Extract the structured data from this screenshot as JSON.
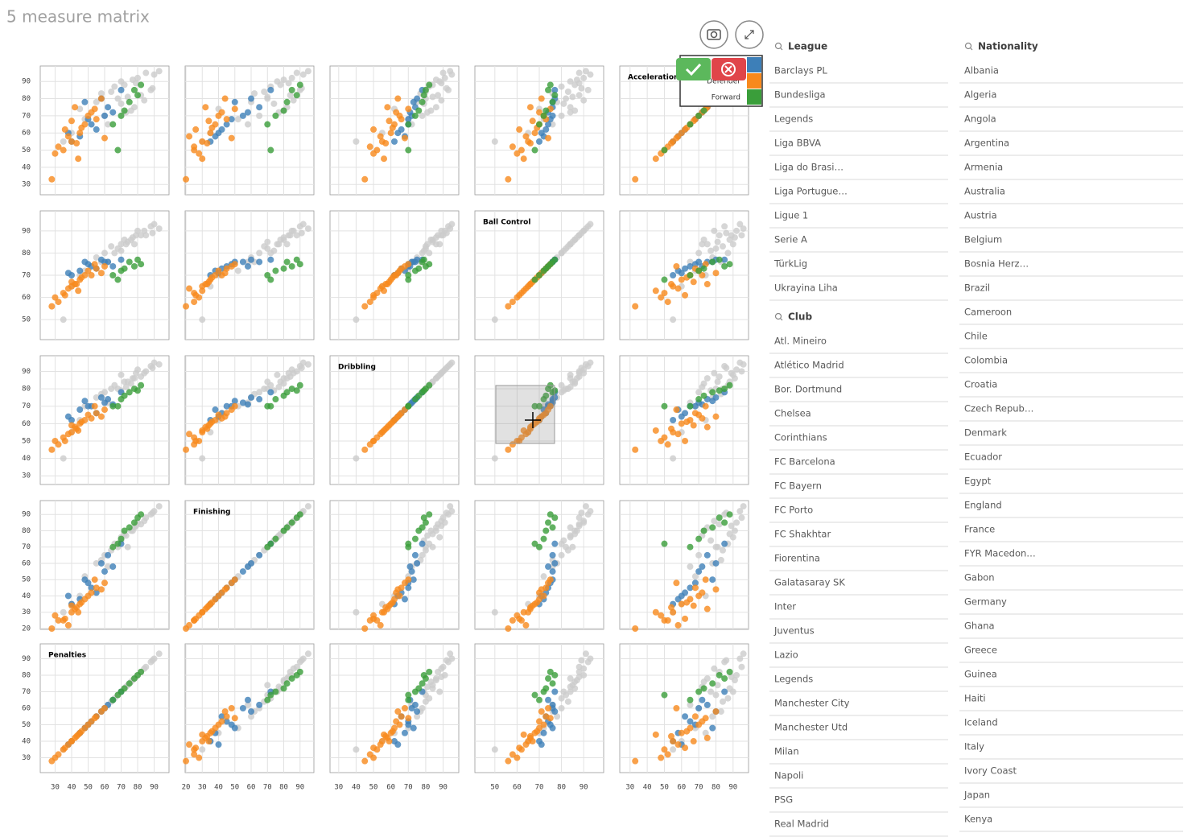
{
  "title": "5 measure matrix",
  "chart_data": {
    "type": "scatter_matrix",
    "measures": [
      {
        "name": "Acceleration",
        "lim": [
          24,
          99
        ],
        "ticks": [
          30,
          40,
          50,
          60,
          70,
          80,
          90
        ]
      },
      {
        "name": "Ball Control",
        "lim": [
          41,
          99
        ],
        "ticks": [
          50,
          60,
          70,
          80,
          90
        ]
      },
      {
        "name": "Dribbling",
        "lim": [
          25,
          99
        ],
        "ticks": [
          30,
          40,
          50,
          60,
          70,
          80,
          90
        ]
      },
      {
        "name": "Finishing",
        "lim": [
          19.5,
          98.5
        ],
        "ticks": [
          20,
          30,
          40,
          50,
          60,
          70,
          80,
          90
        ]
      },
      {
        "name": "Penalties",
        "lim": [
          21,
          99
        ],
        "ticks": [
          30,
          40,
          50,
          60,
          70,
          80,
          90
        ]
      }
    ],
    "grid": true,
    "background": {
      "color": "#cccccc",
      "points": [
        [
          88,
          86,
          84,
          78,
          72
        ],
        [
          92,
          90,
          91,
          85,
          80
        ],
        [
          80,
          82,
          80,
          70,
          68
        ],
        [
          75,
          84,
          86,
          82,
          78
        ],
        [
          95,
          88,
          90,
          88,
          85
        ],
        [
          70,
          80,
          78,
          65,
          60
        ],
        [
          85,
          92,
          93,
          90,
          88
        ],
        [
          78,
          78,
          75,
          60,
          55
        ],
        [
          90,
          84,
          88,
          76,
          70
        ],
        [
          65,
          76,
          72,
          58,
          62
        ],
        [
          82,
          88,
          87,
          84,
          82
        ],
        [
          73,
          86,
          83,
          80,
          76
        ],
        [
          87,
          80,
          82,
          72,
          66
        ],
        [
          94,
          93,
          95,
          92,
          90
        ],
        [
          68,
          72,
          70,
          52,
          48
        ],
        [
          84,
          83,
          80,
          68,
          64
        ],
        [
          79,
          90,
          89,
          86,
          84
        ],
        [
          91,
          87,
          86,
          80,
          77
        ],
        [
          60,
          65,
          55,
          35,
          40
        ],
        [
          74,
          70,
          62,
          40,
          45
        ],
        [
          86,
          89,
          92,
          91,
          89
        ],
        [
          77,
          81,
          79,
          74,
          70
        ],
        [
          83,
          76,
          77,
          62,
          58
        ],
        [
          96,
          91,
          94,
          95,
          93
        ],
        [
          72,
          84,
          81,
          77,
          73
        ],
        [
          55,
          50,
          40,
          30,
          35
        ],
        [
          89,
          88,
          89,
          83,
          79
        ],
        [
          81,
          85,
          84,
          70,
          74
        ]
      ]
    },
    "series": [
      {
        "name": null,
        "color": "#3d7fb8",
        "points": [
          [
            70,
            76,
            72,
            55,
            60
          ],
          [
            65,
            74,
            70,
            45,
            52
          ],
          [
            80,
            77,
            75,
            60,
            58
          ],
          [
            58,
            72,
            68,
            38,
            45
          ],
          [
            75,
            76,
            74,
            65,
            62
          ],
          [
            68,
            75,
            70,
            48,
            50
          ],
          [
            55,
            70,
            62,
            35,
            40
          ],
          [
            85,
            77,
            78,
            72,
            70
          ],
          [
            62,
            73,
            66,
            42,
            55
          ],
          [
            72,
            74,
            71,
            58,
            65
          ],
          [
            78,
            76,
            73,
            50,
            48
          ],
          [
            60,
            71,
            64,
            40,
            38
          ]
        ]
      },
      {
        "name": "Defender",
        "color": "#f8891d",
        "points": [
          [
            60,
            68,
            60,
            35,
            45
          ],
          [
            55,
            65,
            55,
            30,
            40
          ],
          [
            70,
            72,
            65,
            40,
            50
          ],
          [
            50,
            62,
            52,
            25,
            35
          ],
          [
            65,
            70,
            62,
            38,
            48
          ],
          [
            75,
            66,
            58,
            32,
            42
          ],
          [
            48,
            60,
            50,
            28,
            30
          ],
          [
            68,
            73,
            66,
            45,
            55
          ],
          [
            58,
            64,
            54,
            22,
            38
          ],
          [
            72,
            70,
            63,
            42,
            52
          ],
          [
            52,
            58,
            48,
            25,
            32
          ],
          [
            63,
            69,
            61,
            36,
            46
          ],
          [
            80,
            71,
            64,
            44,
            58
          ],
          [
            45,
            63,
            56,
            30,
            44
          ],
          [
            67,
            67,
            59,
            34,
            40
          ],
          [
            33,
            56,
            45,
            20,
            28
          ],
          [
            57,
            74,
            68,
            48,
            60
          ],
          [
            62,
            61,
            50,
            26,
            36
          ],
          [
            74,
            75,
            70,
            50,
            54
          ],
          [
            54,
            66,
            57,
            33,
            43
          ]
        ]
      },
      {
        "name": "Forward",
        "color": "#3a9e3a",
        "points": [
          [
            78,
            76,
            78,
            82,
            75
          ],
          [
            85,
            74,
            80,
            85,
            78
          ],
          [
            70,
            72,
            74,
            75,
            70
          ],
          [
            82,
            77,
            79,
            88,
            80
          ],
          [
            65,
            70,
            70,
            70,
            65
          ],
          [
            88,
            75,
            82,
            90,
            82
          ],
          [
            73,
            73,
            76,
            80,
            72
          ],
          [
            50,
            68,
            70,
            72,
            68
          ]
        ]
      }
    ]
  },
  "filters": [
    {
      "title": "League",
      "items": [
        "Barclays PL",
        "Bundesliga",
        "Legends",
        "Liga BBVA",
        "Liga do Brasi…",
        "Liga Portugue…",
        "Ligue 1",
        "Serie A",
        "TürkLig",
        "Ukrayina Liha"
      ]
    },
    {
      "title": "Club",
      "items": [
        "Atl. Mineiro",
        "Atlético Madrid",
        "Bor. Dortmund",
        "Chelsea",
        "Corinthians",
        "FC Barcelona",
        "FC Bayern",
        "FC Porto",
        "FC Shakhtar",
        "Fiorentina",
        "Galatasaray SK",
        "Inter",
        "Juventus",
        "Lazio",
        "Legends",
        "Manchester City",
        "Manchester Utd",
        "Milan",
        "Napoli",
        "PSG",
        "Real Madrid"
      ]
    },
    {
      "title": "Nationality",
      "items": [
        "Albania",
        "Algeria",
        "Angola",
        "Argentina",
        "Armenia",
        "Australia",
        "Austria",
        "Belgium",
        "Bosnia Herz…",
        "Brazil",
        "Cameroon",
        "Chile",
        "Colombia",
        "Croatia",
        "Czech Repub…",
        "Denmark",
        "Ecuador",
        "Egypt",
        "England",
        "France",
        "FYR Macedon…",
        "Gabon",
        "Germany",
        "Ghana",
        "Greece",
        "Guinea",
        "Haiti",
        "Iceland",
        "Italy",
        "Ivory Coast",
        "Japan",
        "Kenya"
      ]
    }
  ]
}
